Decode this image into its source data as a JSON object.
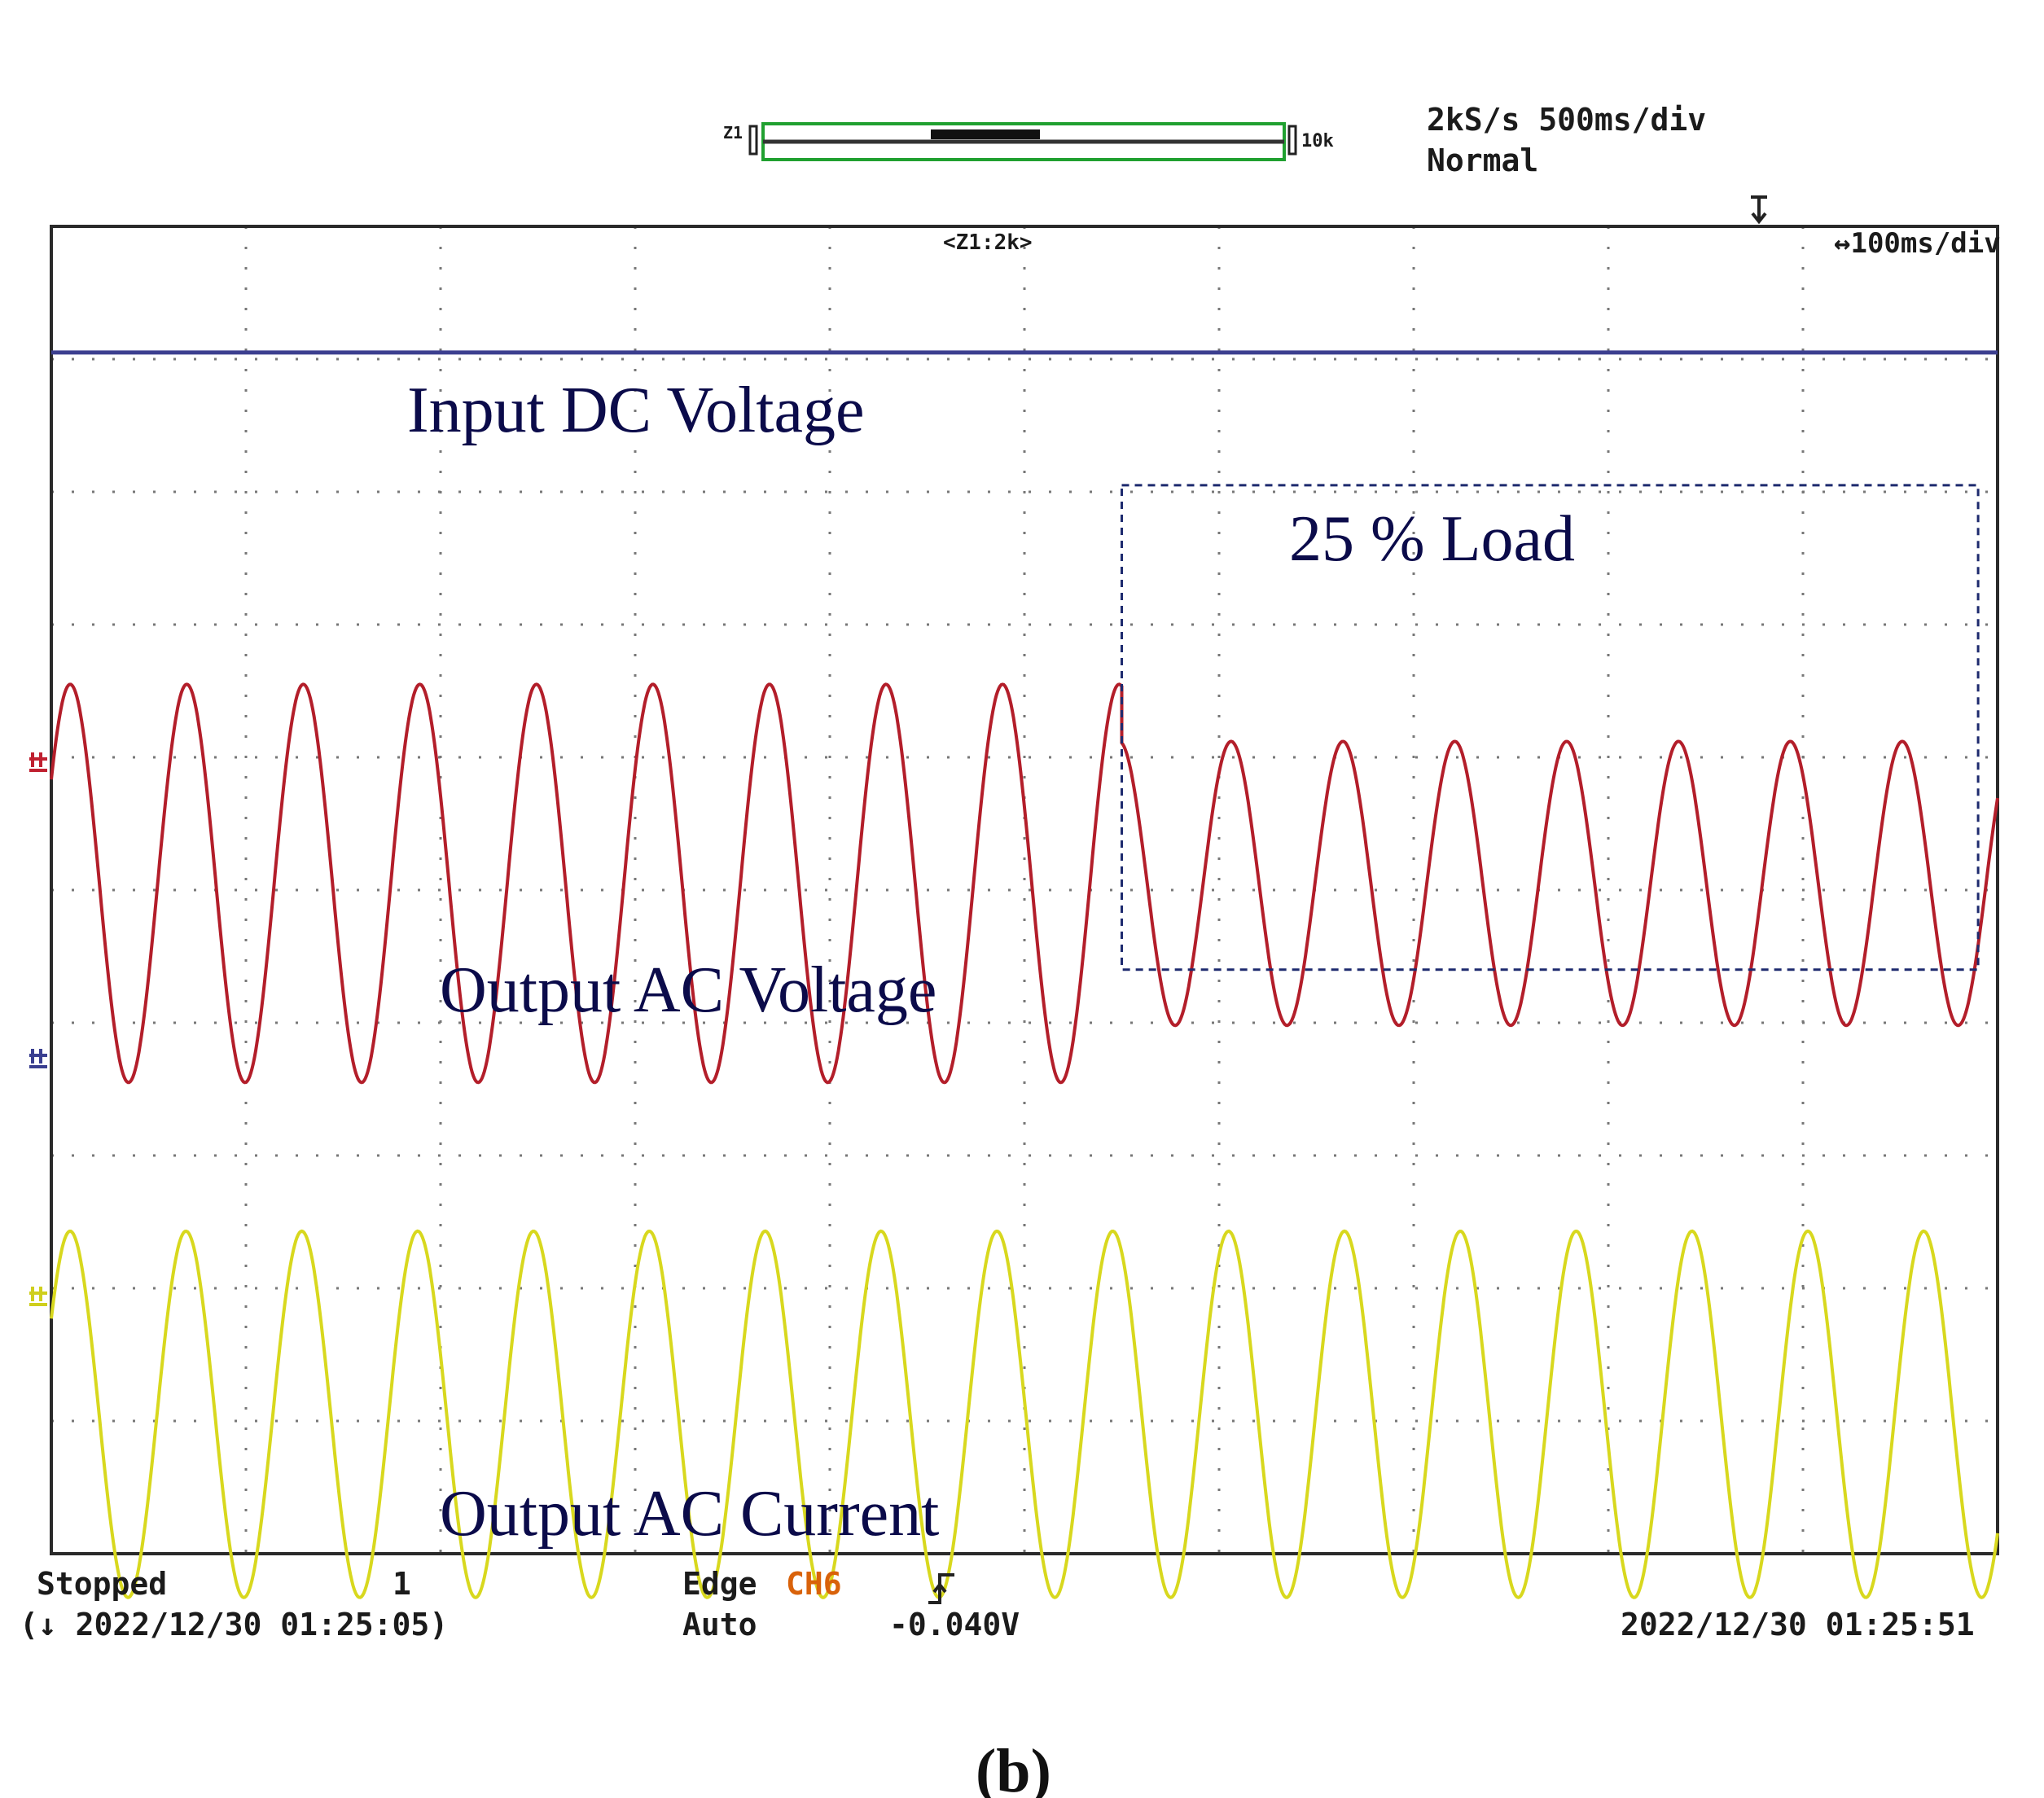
{
  "header": {
    "zoom_left_label": "Z1",
    "zoom_right_label": "10k",
    "sample_rate": "2kS/s 500ms/div",
    "trigger_mode": "Normal",
    "zoom_window": "<Z1:2k>",
    "zoom_timebase": "↔100ms/div"
  },
  "footer": {
    "status": "Stopped",
    "record_number": "1",
    "start_time": "(↓ 2022/12/30 01:25:05)",
    "trigger_type": "Edge",
    "trigger_source": "CH6",
    "trigger_mode_label": "Auto",
    "trigger_level": "-0.040V",
    "end_time": "2022/12/30 01:25:51"
  },
  "caption": "(b)",
  "colors": {
    "dc_trace": "#3c3f8f",
    "voltage_trace": "#b31e2a",
    "current_trace": "#d8d81e",
    "grid": "#777777",
    "frame": "#2a2a2a",
    "trigger_source": "#d9620a"
  },
  "chart_data": {
    "type": "line",
    "grid": true,
    "x_divisions": 10,
    "y_divisions": 10,
    "annotations": {
      "dc_label": "Input DC Voltage",
      "load_label": "25 % Load",
      "voltage_label": "Output AC Voltage",
      "current_label": "Output AC Current"
    },
    "series": [
      {
        "key": "dc",
        "offset_div": 9.05,
        "amplitude_div": 0,
        "cycles": 0
      },
      {
        "key": "voltage",
        "offset_div": 5.05,
        "segments": [
          {
            "x_start_div": 0,
            "x_end_div": 5.5,
            "amplitude_div": 1.5,
            "cycles_per_div": 1.67
          },
          {
            "x_start_div": 5.5,
            "x_end_div": 10,
            "amplitude_div": 1.07,
            "cycles_per_div": 1.74
          }
        ]
      },
      {
        "key": "current",
        "offset_div": 1.05,
        "amplitude_div": 1.38,
        "cycles_per_div": 1.68
      }
    ],
    "load_region_div": {
      "x_start": 5.5,
      "x_end": 9.9,
      "y_low": 4.4,
      "y_high": 8.05
    }
  }
}
